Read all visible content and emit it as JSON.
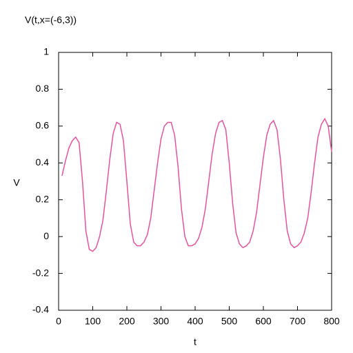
{
  "chart_data": {
    "type": "line",
    "title": "V(t,x=(-6,3))",
    "x_label": "t",
    "y_label": "V",
    "x": [
      10,
      20,
      30,
      40,
      50,
      60,
      70,
      80,
      90,
      100,
      110,
      120,
      130,
      140,
      150,
      160,
      170,
      180,
      190,
      200,
      210,
      220,
      230,
      240,
      250,
      260,
      270,
      280,
      290,
      300,
      310,
      320,
      330,
      340,
      350,
      360,
      370,
      380,
      390,
      400,
      410,
      420,
      430,
      440,
      450,
      460,
      470,
      480,
      490,
      500,
      510,
      520,
      530,
      540,
      550,
      560,
      570,
      580,
      590,
      600,
      610,
      620,
      630,
      640,
      650,
      660,
      670,
      680,
      690,
      700,
      710,
      720,
      730,
      740,
      750,
      760,
      770,
      780,
      790,
      800
    ],
    "series": [
      {
        "name": "V",
        "color": "#e9519f",
        "values": [
          0.33,
          0.41,
          0.48,
          0.52,
          0.54,
          0.51,
          0.3,
          0.03,
          -0.07,
          -0.08,
          -0.06,
          0,
          0.09,
          0.25,
          0.42,
          0.56,
          0.62,
          0.61,
          0.52,
          0.3,
          0.07,
          -0.03,
          -0.05,
          -0.05,
          -0.03,
          0.01,
          0.1,
          0.25,
          0.4,
          0.53,
          0.6,
          0.62,
          0.62,
          0.55,
          0.38,
          0.15,
          0,
          -0.05,
          -0.05,
          -0.04,
          -0.01,
          0.05,
          0.15,
          0.3,
          0.45,
          0.56,
          0.62,
          0.63,
          0.58,
          0.4,
          0.18,
          0.02,
          -0.04,
          -0.06,
          -0.05,
          -0.03,
          0.03,
          0.13,
          0.28,
          0.43,
          0.55,
          0.61,
          0.63,
          0.58,
          0.42,
          0.2,
          0.03,
          -0.04,
          -0.06,
          -0.05,
          -0.03,
          0.02,
          0.1,
          0.24,
          0.4,
          0.54,
          0.61,
          0.64,
          0.6,
          0.46
        ]
      }
    ],
    "xlim": [
      0,
      800
    ],
    "xticks": [
      0,
      100,
      200,
      300,
      400,
      500,
      600,
      700,
      800
    ],
    "ylim": [
      -0.4,
      1
    ],
    "yticks": [
      -0.4,
      -0.2,
      0,
      0.2,
      0.4,
      0.6,
      0.8,
      1
    ],
    "grid": false
  }
}
